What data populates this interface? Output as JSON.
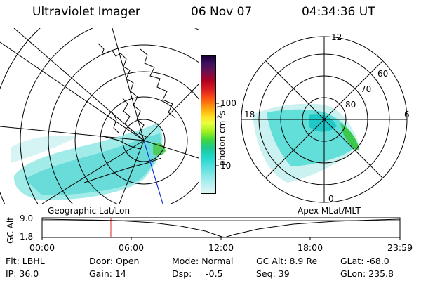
{
  "header": {
    "title": "Ultraviolet Imager",
    "date": "06 Nov 07",
    "time": "04:34:36 UT"
  },
  "colorbar": {
    "label_parts": [
      "photon cm",
      "-2",
      "s",
      "-1"
    ],
    "ticks": [
      "100",
      "10"
    ]
  },
  "polar_plot": {
    "mlt_labels": [
      "12",
      "18",
      "6",
      "0"
    ],
    "lat_labels": [
      "60",
      "70",
      "80"
    ]
  },
  "map_labels": {
    "left": "Geographic Lat/Lon",
    "right": "Apex MLat/MLT"
  },
  "altitude_plot": {
    "ylabel": "GC Alt",
    "yticks": [
      "9.0",
      "1.8"
    ],
    "xticks": [
      "00:00",
      "06:00",
      "12:00",
      "18:00",
      "23:59"
    ]
  },
  "info": {
    "filter": "Flt: LBHL",
    "ip": "IP: 36.0",
    "door": "Door: Open",
    "gain": "Gain: 14",
    "mode": "Mode: Normal",
    "dsp": "Dsp:     -0.5",
    "gc_alt": "GC Alt: 8.9 Re",
    "seq": "Seq: 39",
    "glat": "GLat: -68.0",
    "glon": "GLon: 235.8"
  },
  "colors": {
    "aurora": "#3fd8d0",
    "aurora_green": "#3cc84a",
    "marker_red": "#e02020",
    "meridian_blue": "#2030e0"
  }
}
